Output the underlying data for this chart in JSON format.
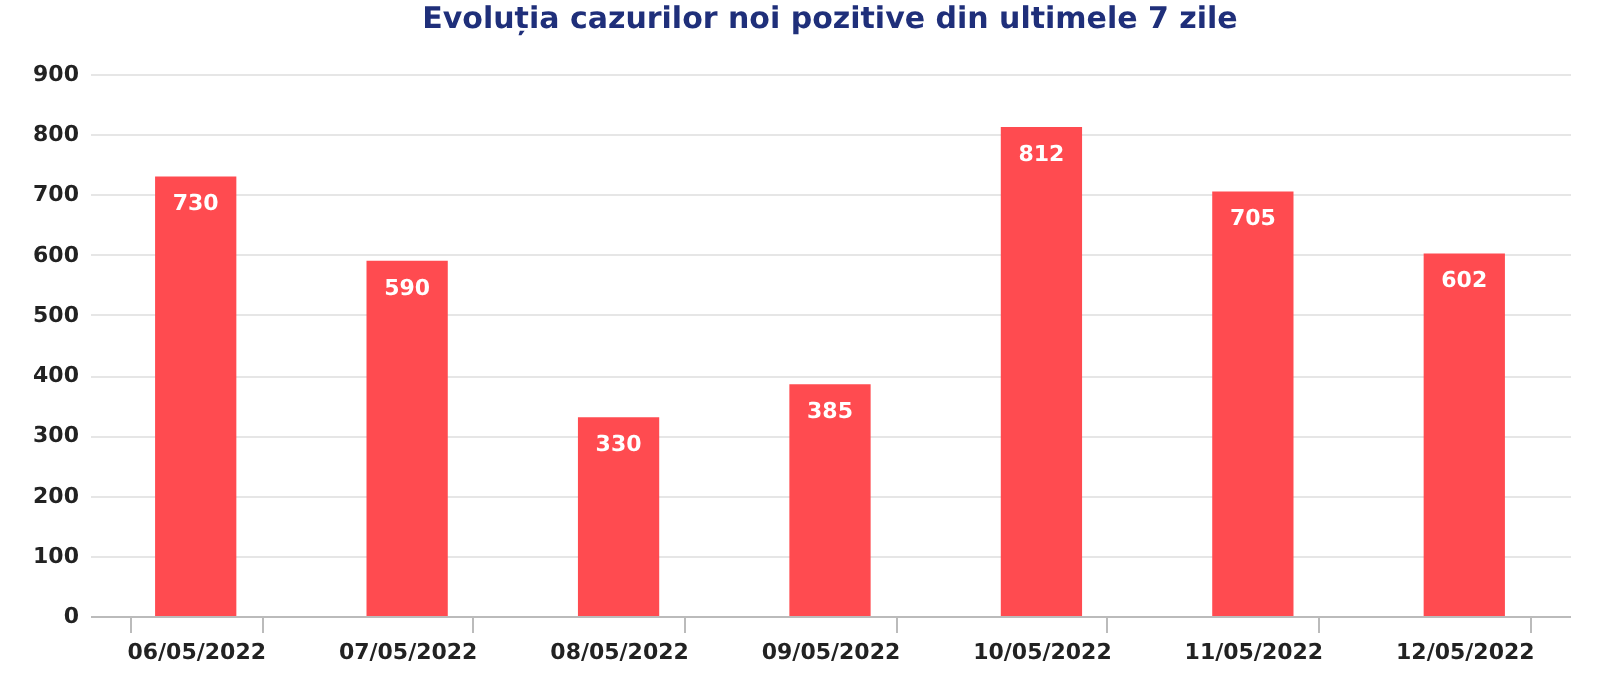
{
  "chart_data": {
    "type": "bar",
    "title": "Evoluția cazurilor noi pozitive din ultimele 7 zile",
    "categories": [
      "06/05/2022",
      "07/05/2022",
      "08/05/2022",
      "09/05/2022",
      "10/05/2022",
      "11/05/2022",
      "12/05/2022"
    ],
    "values": [
      730,
      590,
      330,
      385,
      812,
      705,
      602
    ],
    "color": "#ff4b50",
    "ylim": [
      0,
      900
    ],
    "yticks": [
      0,
      100,
      200,
      300,
      400,
      500,
      600,
      700,
      800,
      900
    ],
    "grid": "y",
    "data_labels": true
  }
}
